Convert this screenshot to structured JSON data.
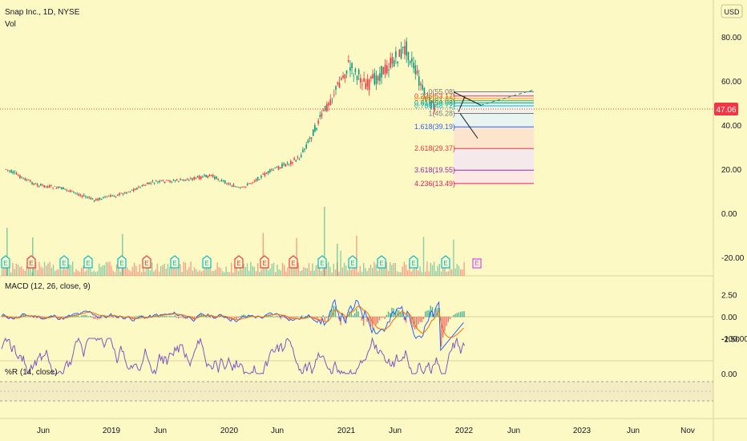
{
  "header": {
    "symbol_title": "Snap Inc., 1D, NYSE",
    "volume_label": "Vol",
    "currency": "USD"
  },
  "price_pane": {
    "y_ticks": [
      "80.00",
      "60.00",
      "40.00",
      "20.00",
      "0.00",
      "-20.00"
    ],
    "last_price": "47.06",
    "last_price_color": "#f23645"
  },
  "fib_levels": [
    {
      "label": "0(55.08)",
      "color": "#787b86"
    },
    {
      "label": "0.236(53.17)",
      "color": "#f23645"
    },
    {
      "label": "0.382(51.99)",
      "color": "#ff9800"
    },
    {
      "label": "0.5(51.03)",
      "color": "#4caf50"
    },
    {
      "label": "0.618(50.08)",
      "color": "#089981"
    },
    {
      "label": "0.786(48.72)",
      "color": "#00bcd4"
    },
    {
      "label": "1(45.28)",
      "color": "#787b86"
    },
    {
      "label": "1.618(39.19)",
      "color": "#2962ff"
    },
    {
      "label": "2.618(29.37)",
      "color": "#f23645"
    },
    {
      "label": "3.618(19.55)",
      "color": "#9c27b0"
    },
    {
      "label": "4.236(13.49)",
      "color": "#e91e63"
    }
  ],
  "earnings_markers": [
    "E",
    "E",
    "E",
    "E",
    "E",
    "E",
    "E",
    "E",
    "E",
    "E",
    "E",
    "E",
    "E",
    "E",
    "E",
    "E"
  ],
  "macd_pane": {
    "label": "MACD (12, 26, close, 9)",
    "y_ticks": [
      "2.50",
      "0.00",
      "-2.50"
    ]
  },
  "wr_pane": {
    "label": "%R (14, close)",
    "y_ticks": [
      "0.00",
      "-100.00"
    ]
  },
  "x_axis": {
    "ticks": [
      "Jun",
      "2019",
      "Jun",
      "2020",
      "Jun",
      "2021",
      "Jun",
      "2022",
      "Jun",
      "2023",
      "Jun",
      "Nov"
    ]
  },
  "colors": {
    "up": "#089981",
    "down": "#f23645",
    "macd": "#2962ff",
    "signal": "#ff6d00",
    "wr": "#7e57c2"
  },
  "chart_data": {
    "type": "line",
    "title": "Snap Inc., 1D, NYSE",
    "price_series": {
      "name": "Snap Inc.",
      "x": [
        "2018-03",
        "2018-06",
        "2018-09",
        "2018-12",
        "2019-03",
        "2019-06",
        "2019-09",
        "2019-12",
        "2020-03",
        "2020-06",
        "2020-09",
        "2020-12",
        "2021-02",
        "2021-04",
        "2021-06",
        "2021-08",
        "2021-10",
        "2021-11"
      ],
      "y": [
        20,
        13,
        11,
        6,
        9,
        14,
        15,
        17,
        11,
        19,
        25,
        50,
        67,
        58,
        66,
        75,
        52,
        47
      ]
    },
    "ylim": [
      -25,
      88
    ],
    "last_price": 47.06
  }
}
